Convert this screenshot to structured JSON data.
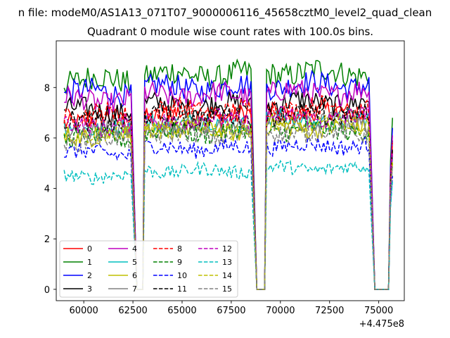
{
  "figure_title": "n file: modeM0/AS1A13_071T07_9000006116_45658cztM0_level2_quad_clean",
  "chart_data": {
    "type": "line",
    "title": "Quadrant 0 module wise count rates with 100.0s bins.",
    "xlabel": "",
    "ylabel": "",
    "offset_label": "+4.475e8",
    "xlim": [
      58600,
      76300
    ],
    "ylim": [
      -0.45,
      9.85
    ],
    "xticks": [
      60000,
      62500,
      65000,
      67500,
      70000,
      72500,
      75000
    ],
    "xtick_labels": [
      "60000",
      "62500",
      "65000",
      "67500",
      "70000",
      "72500",
      "75000"
    ],
    "yticks": [
      0,
      2,
      4,
      6,
      8
    ],
    "ytick_labels": [
      "0",
      "2",
      "4",
      "6",
      "8"
    ],
    "grid": false,
    "legend_position": "lower-left",
    "legend_columns": 4,
    "segments": [
      {
        "start": 59000,
        "end": 62400,
        "drop_to": 62700
      },
      {
        "start": 63100,
        "end": 68500,
        "drop_to": 68800
      },
      {
        "start": 69300,
        "end": 74500,
        "drop_to": 74800
      },
      {
        "start": 75600,
        "end": 75700,
        "drop_to": null
      }
    ],
    "zero_intervals": [
      [
        62700,
        63000
      ],
      [
        68800,
        69200
      ],
      [
        74800,
        75500
      ]
    ],
    "series": [
      {
        "name": "0",
        "color": "#ff0000",
        "dash": "solid",
        "level": 6.7,
        "end_value": 5.5
      },
      {
        "name": "1",
        "color": "#008000",
        "dash": "solid",
        "level": 8.3,
        "end_value": 6.8
      },
      {
        "name": "2",
        "color": "#0000ff",
        "dash": "solid",
        "level": 7.8,
        "end_value": 6.4
      },
      {
        "name": "3",
        "color": "#000000",
        "dash": "solid",
        "level": 7.1,
        "end_value": 5.9
      },
      {
        "name": "4",
        "color": "#bf00bf",
        "dash": "solid",
        "level": 7.5,
        "end_value": 6.1
      },
      {
        "name": "5",
        "color": "#00bfbf",
        "dash": "solid",
        "level": 6.4,
        "end_value": 5.2
      },
      {
        "name": "6",
        "color": "#bfbf00",
        "dash": "solid",
        "level": 6.1,
        "end_value": 5.0
      },
      {
        "name": "7",
        "color": "#808080",
        "dash": "solid",
        "level": 6.3,
        "end_value": 5.3
      },
      {
        "name": "8",
        "color": "#ff0000",
        "dash": "dashed",
        "level": 6.9,
        "end_value": 5.8
      },
      {
        "name": "9",
        "color": "#008000",
        "dash": "dashed",
        "level": 6.0,
        "end_value": 5.0
      },
      {
        "name": "10",
        "color": "#0000ff",
        "dash": "dashed",
        "level": 5.4,
        "end_value": 4.5
      },
      {
        "name": "11",
        "color": "#000000",
        "dash": "dashed",
        "level": 6.6,
        "end_value": 5.6
      },
      {
        "name": "12",
        "color": "#bf00bf",
        "dash": "dashed",
        "level": 6.5,
        "end_value": 5.4
      },
      {
        "name": "13",
        "color": "#00bfbf",
        "dash": "dashed",
        "level": 4.5,
        "end_value": 4.3
      },
      {
        "name": "14",
        "color": "#bfbf00",
        "dash": "dashed",
        "level": 6.2,
        "end_value": 5.1
      },
      {
        "name": "15",
        "color": "#808080",
        "dash": "dashed",
        "level": 5.9,
        "end_value": 4.9
      }
    ]
  }
}
